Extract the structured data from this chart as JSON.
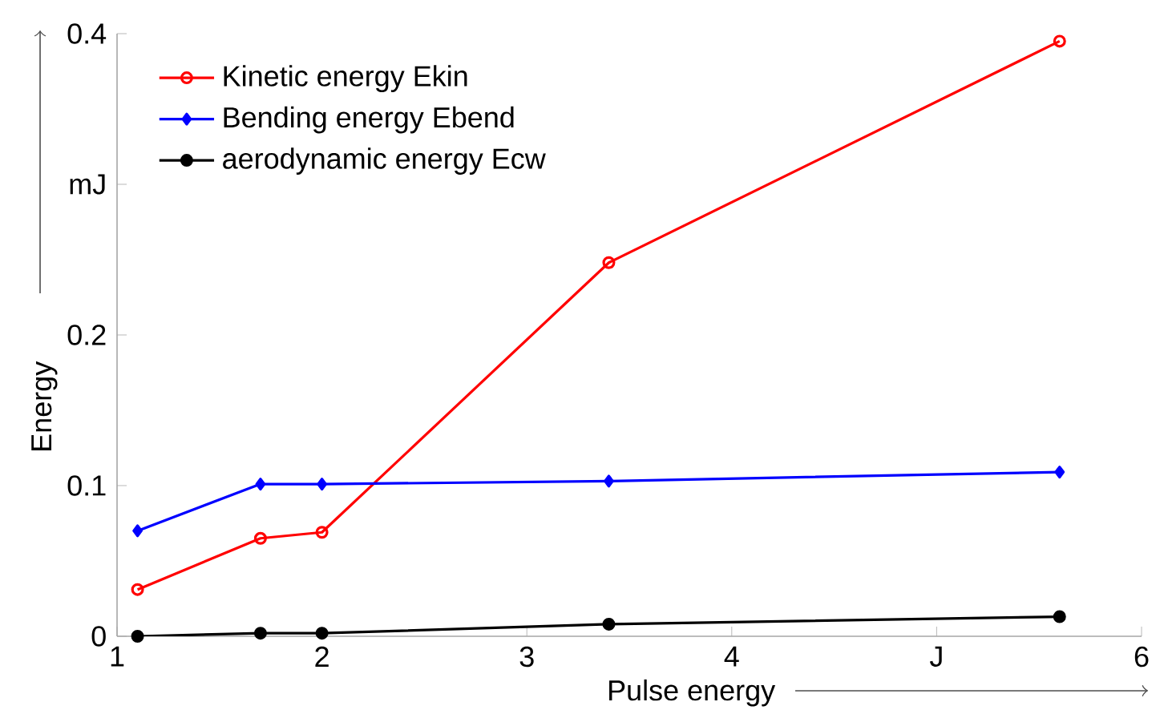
{
  "chart_data": {
    "type": "line",
    "xlabel": "Pulse energy",
    "ylabel": "Energy",
    "x": [
      1.1,
      1.7,
      2.0,
      3.4,
      5.6
    ],
    "series": [
      {
        "name": "Kinetic energy Ekin",
        "color": "#ff0000",
        "marker": "circle",
        "values": [
          0.031,
          0.065,
          0.069,
          0.248,
          0.395
        ]
      },
      {
        "name": "Bending energy Ebend",
        "color": "#0000ff",
        "marker": "diamond",
        "values": [
          0.07,
          0.101,
          0.101,
          0.103,
          0.109
        ]
      },
      {
        "name": "aerodynamic energy Ecw",
        "color": "#000000",
        "marker": "circle",
        "values": [
          0.0,
          0.002,
          0.002,
          0.008,
          0.013
        ]
      }
    ],
    "xlim": [
      1,
      6
    ],
    "ylim": [
      0,
      0.4
    ],
    "xticks": [
      1,
      2,
      3,
      4,
      {
        "value": 5,
        "label": "J"
      },
      6
    ],
    "yticks": [
      0,
      0.1,
      0.2,
      {
        "value": 0.3,
        "label": "mJ"
      },
      0.4
    ],
    "grid": false,
    "legend": "top left",
    "line_style": "solid"
  }
}
